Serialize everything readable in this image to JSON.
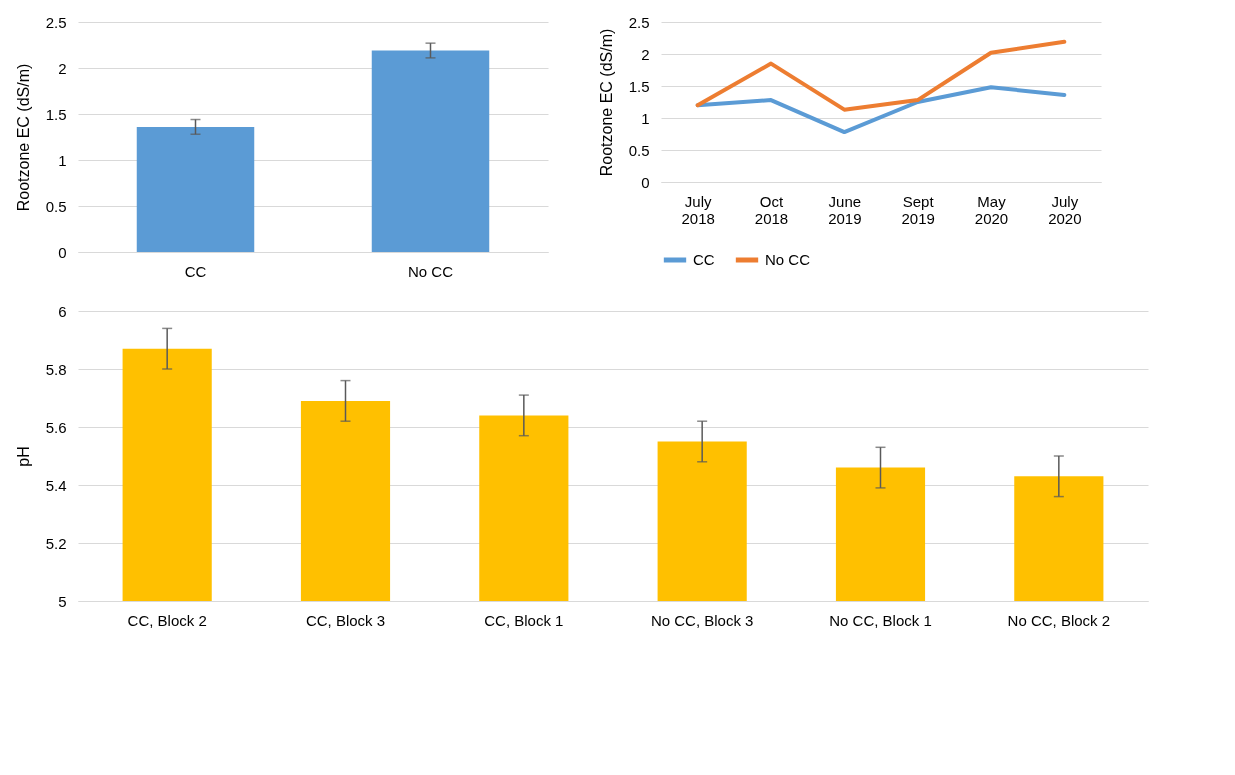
{
  "chart_data": [
    {
      "type": "bar",
      "ylabel": "Rootzone EC (dS/m)",
      "categories": [
        "CC",
        "No CC"
      ],
      "values": [
        1.36,
        2.19
      ],
      "errors": [
        0.08,
        0.08
      ],
      "color": "#5b9bd5",
      "ylim": [
        0,
        2.5
      ],
      "yticks": [
        0,
        0.5,
        1,
        1.5,
        2,
        2.5
      ],
      "grid": "y"
    },
    {
      "type": "line",
      "ylabel": "Rootzone EC (dS/m)",
      "categories": [
        "July 2018",
        "Oct 2018",
        "June 2019",
        "Sept 2019",
        "May 2020",
        "July 2020"
      ],
      "series": [
        {
          "name": "CC",
          "color": "#5b9bd5",
          "values": [
            1.2,
            1.28,
            0.78,
            1.25,
            1.48,
            1.36
          ]
        },
        {
          "name": "No CC",
          "color": "#ed7d31",
          "values": [
            1.2,
            1.85,
            1.13,
            1.28,
            2.02,
            2.19
          ]
        }
      ],
      "ylim": [
        0,
        2.5
      ],
      "yticks": [
        0,
        0.5,
        1,
        1.5,
        2,
        2.5
      ],
      "grid": "y",
      "legend": "bottom",
      "marker": "none",
      "line_style": "solid"
    },
    {
      "type": "bar",
      "ylabel": "pH",
      "categories": [
        "CC, Block 2",
        "CC, Block 3",
        "CC, Block 1",
        "No CC, Block 3",
        "No CC, Block 1",
        "No CC, Block 2"
      ],
      "values": [
        5.87,
        5.69,
        5.64,
        5.55,
        5.46,
        5.43
      ],
      "errors": [
        0.07,
        0.07,
        0.07,
        0.07,
        0.07,
        0.07
      ],
      "color": "#ffc000",
      "ylim": [
        5,
        6
      ],
      "yticks": [
        5,
        5.2,
        5.4,
        5.6,
        5.8,
        6
      ],
      "grid": "y"
    }
  ]
}
